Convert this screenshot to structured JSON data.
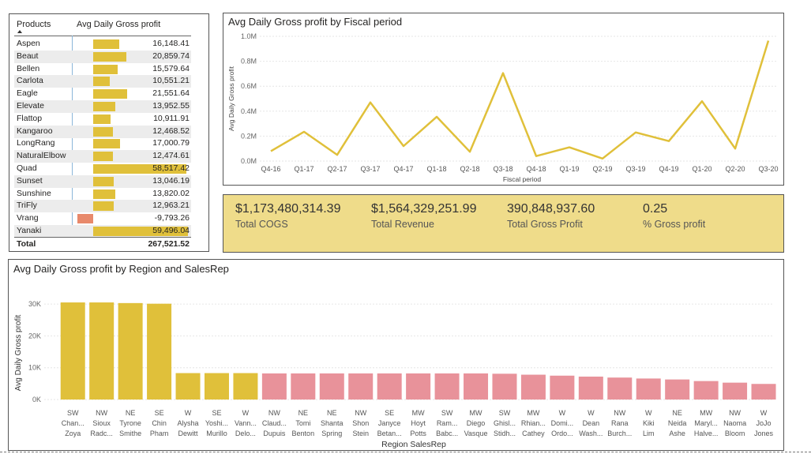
{
  "table": {
    "col_products": "Products",
    "col_metric": "Avg Daily Gross profit",
    "rows": [
      {
        "name": "Aspen",
        "value": "16,148.41",
        "num": 16148.41
      },
      {
        "name": "Beaut",
        "value": "20,859.74",
        "num": 20859.74
      },
      {
        "name": "Bellen",
        "value": "15,579.64",
        "num": 15579.64
      },
      {
        "name": "Carlota",
        "value": "10,551.21",
        "num": 10551.21
      },
      {
        "name": "Eagle",
        "value": "21,551.64",
        "num": 21551.64
      },
      {
        "name": "Elevate",
        "value": "13,952.55",
        "num": 13952.55
      },
      {
        "name": "Flattop",
        "value": "10,911.91",
        "num": 10911.91
      },
      {
        "name": "Kangaroo",
        "value": "12,468.52",
        "num": 12468.52
      },
      {
        "name": "LongRang",
        "value": "17,000.79",
        "num": 17000.79
      },
      {
        "name": "NaturalElbow",
        "value": "12,474.61",
        "num": 12474.61
      },
      {
        "name": "Quad",
        "value": "58,517.42",
        "num": 58517.42
      },
      {
        "name": "Sunset",
        "value": "13,046.19",
        "num": 13046.19
      },
      {
        "name": "Sunshine",
        "value": "13,820.02",
        "num": 13820.02
      },
      {
        "name": "TriFly",
        "value": "12,963.21",
        "num": 12963.21
      },
      {
        "name": "Vrang",
        "value": "-9,793.26",
        "num": -9793.26
      },
      {
        "name": "Yanaki",
        "value": "59,496.04",
        "num": 59496.04
      }
    ],
    "total_label": "Total",
    "total_value": "267,521.52"
  },
  "line_chart": {
    "title": "Avg Daily Gross profit by Fiscal period",
    "xlabel": "Fiscal period",
    "ylabel": "Avg Daily Gross profit",
    "color": "#e0c03a"
  },
  "kpi": [
    {
      "value": "$1,173,480,314.39",
      "label": "Total COGS"
    },
    {
      "value": "$1,564,329,251.99",
      "label": "Total Revenue"
    },
    {
      "value": "390,848,937.60",
      "label": "Total Gross Profit"
    },
    {
      "value": "0.25",
      "label": "% Gross profit"
    }
  ],
  "bar_chart": {
    "title": "Avg Daily Gross profit by Region and SalesRep",
    "xlabel": "Region SalesRep",
    "ylabel": "Avg Daily Gross profit",
    "color_a": "#e0c03a",
    "color_b": "#e8929a"
  },
  "chart_data": [
    {
      "type": "line",
      "title": "Avg Daily Gross profit by Fiscal period",
      "xlabel": "Fiscal period",
      "ylabel": "Avg Daily Gross profit",
      "x": [
        "Q4-16",
        "Q1-17",
        "Q2-17",
        "Q3-17",
        "Q4-17",
        "Q1-18",
        "Q2-18",
        "Q3-18",
        "Q4-18",
        "Q1-19",
        "Q2-19",
        "Q3-19",
        "Q4-19",
        "Q1-20",
        "Q2-20",
        "Q3-20"
      ],
      "values": [
        80000,
        235000,
        50000,
        470000,
        120000,
        355000,
        75000,
        705000,
        40000,
        110000,
        20000,
        230000,
        160000,
        480000,
        100000,
        965000
      ],
      "y_ticks": [
        "0.0M",
        "0.2M",
        "0.4M",
        "0.6M",
        "0.8M",
        "1.0M"
      ],
      "ylim": [
        0,
        1000000
      ],
      "grid": true
    },
    {
      "type": "bar",
      "title": "Avg Daily Gross profit by Region and SalesRep",
      "xlabel": "Region SalesRep",
      "ylabel": "Avg Daily Gross profit",
      "y_ticks": [
        "0K",
        "10K",
        "20K",
        "30K"
      ],
      "ylim": [
        0,
        32000
      ],
      "grid": true,
      "categories": [
        {
          "region": "SW",
          "rep1": "Chan...",
          "rep2": "Zoya",
          "value": 30500,
          "group": "a"
        },
        {
          "region": "NW",
          "rep1": "Sioux",
          "rep2": "Radc...",
          "value": 30500,
          "group": "a"
        },
        {
          "region": "NE",
          "rep1": "Tyrone",
          "rep2": "Smithe",
          "value": 30300,
          "group": "a"
        },
        {
          "region": "SE",
          "rep1": "Chin",
          "rep2": "Pham",
          "value": 30100,
          "group": "a"
        },
        {
          "region": "W",
          "rep1": "Alysha",
          "rep2": "Dewitt",
          "value": 8300,
          "group": "a"
        },
        {
          "region": "SE",
          "rep1": "Yoshi...",
          "rep2": "Murillo",
          "value": 8300,
          "group": "a"
        },
        {
          "region": "W",
          "rep1": "Vann...",
          "rep2": "Delo...",
          "value": 8300,
          "group": "a"
        },
        {
          "region": "NW",
          "rep1": "Claud...",
          "rep2": "Dupuis",
          "value": 8200,
          "group": "b"
        },
        {
          "region": "NE",
          "rep1": "Tomi",
          "rep2": "Benton",
          "value": 8200,
          "group": "b"
        },
        {
          "region": "NE",
          "rep1": "Shanta",
          "rep2": "Spring",
          "value": 8200,
          "group": "b"
        },
        {
          "region": "NW",
          "rep1": "Shon",
          "rep2": "Stein",
          "value": 8200,
          "group": "b"
        },
        {
          "region": "SE",
          "rep1": "Janyce",
          "rep2": "Betan...",
          "value": 8200,
          "group": "b"
        },
        {
          "region": "MW",
          "rep1": "Hoyt",
          "rep2": "Potts",
          "value": 8200,
          "group": "b"
        },
        {
          "region": "SW",
          "rep1": "Ram...",
          "rep2": "Babc...",
          "value": 8200,
          "group": "b"
        },
        {
          "region": "MW",
          "rep1": "Diego",
          "rep2": "Vasque",
          "value": 8200,
          "group": "b"
        },
        {
          "region": "SW",
          "rep1": "Ghisl...",
          "rep2": "Stidh...",
          "value": 8100,
          "group": "b"
        },
        {
          "region": "MW",
          "rep1": "Rhian...",
          "rep2": "Cathey",
          "value": 7800,
          "group": "b"
        },
        {
          "region": "W",
          "rep1": "Domi...",
          "rep2": "Ordo...",
          "value": 7500,
          "group": "b"
        },
        {
          "region": "W",
          "rep1": "Dean",
          "rep2": "Wash...",
          "value": 7200,
          "group": "b"
        },
        {
          "region": "NW",
          "rep1": "Rana",
          "rep2": "Burch...",
          "value": 6900,
          "group": "b"
        },
        {
          "region": "W",
          "rep1": "Kiki",
          "rep2": "Lim",
          "value": 6600,
          "group": "b"
        },
        {
          "region": "NE",
          "rep1": "Neida",
          "rep2": "Ashe",
          "value": 6300,
          "group": "b"
        },
        {
          "region": "MW",
          "rep1": "Maryl...",
          "rep2": "Halve...",
          "value": 5800,
          "group": "b"
        },
        {
          "region": "NW",
          "rep1": "Naoma",
          "rep2": "Bloom",
          "value": 5300,
          "group": "b"
        },
        {
          "region": "W",
          "rep1": "JoJo",
          "rep2": "Jones",
          "value": 4900,
          "group": "b"
        }
      ]
    }
  ]
}
